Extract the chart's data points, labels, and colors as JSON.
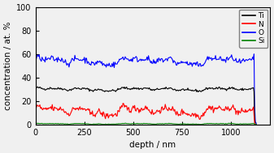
{
  "title": "",
  "xlabel": "depth / nm",
  "ylabel": "concentration / at. %",
  "xlim": [
    0,
    1200
  ],
  "ylim": [
    0,
    100
  ],
  "xticks": [
    0,
    250,
    500,
    750,
    1000
  ],
  "yticks": [
    0,
    20,
    40,
    60,
    80,
    100
  ],
  "legend": [
    "Ti",
    "N",
    "O",
    "Si"
  ],
  "colors": [
    "black",
    "red",
    "blue",
    "green"
  ],
  "figsize": [
    3.37,
    1.89
  ],
  "dpi": 100,
  "seed": 42,
  "n_points": 300,
  "depth_max": 1130,
  "drop_x": 1115,
  "Ti_base": 30.0,
  "Ti_noise": 1.2,
  "N_base": 11.5,
  "N_noise": 3.5,
  "O_base": 54.0,
  "O_noise": 3.0,
  "Si_base": 0.5,
  "Si_noise": 0.3,
  "linewidth": 0.8,
  "bg_color": "#f0f0f0"
}
